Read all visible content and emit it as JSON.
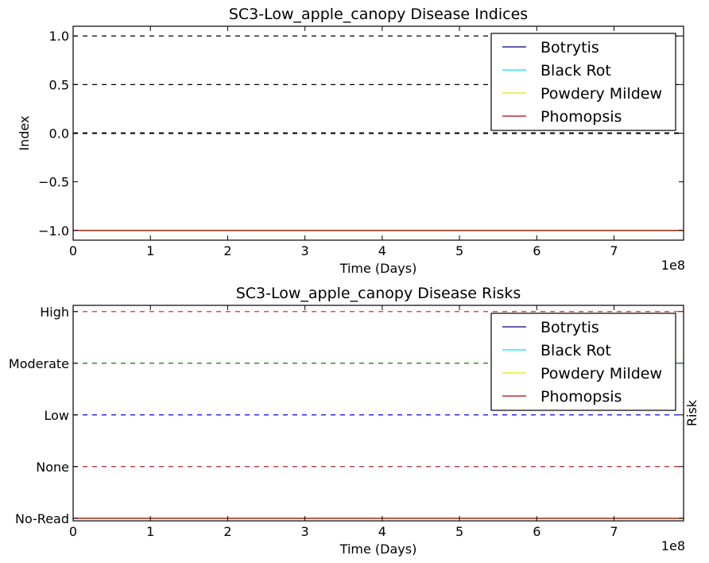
{
  "colors": {
    "Botrytis": "#00007f",
    "Black Rot": "#00e5ee",
    "Powdery Mildew": "#e5e500",
    "Phomopsis": "#b30000",
    "high_line": "#ff0000",
    "moderate_line": "#008000",
    "low_line": "#0000ff",
    "none_line": "#a52a2a",
    "index_ref_line": "#000000"
  },
  "chart_data": [
    {
      "type": "line",
      "title": "SC3-Low_apple_canopy Disease Indices",
      "xlabel": "Time (Days)",
      "ylabel": "Index",
      "x_offset_label": "1e8",
      "xlim": [
        0,
        7.9
      ],
      "ylim": [
        -1.1,
        1.1
      ],
      "xticks": [
        0,
        1,
        2,
        3,
        4,
        5,
        6,
        7
      ],
      "xtick_labels": [
        "0",
        "1",
        "2",
        "3",
        "4",
        "5",
        "6",
        "7"
      ],
      "yticks": [
        -1.0,
        -0.5,
        0.0,
        0.5,
        1.0
      ],
      "ytick_labels": [
        "−1.0",
        "−0.5",
        "0.0",
        "0.5",
        "1.0"
      ],
      "reference_lines": [
        {
          "y": 1.0,
          "style": "dashed",
          "color": "#000000"
        },
        {
          "y": 0.5,
          "style": "dashed",
          "color": "#000000"
        },
        {
          "y": 0.0,
          "style": "dashed",
          "color": "#000000"
        }
      ],
      "series": [
        {
          "name": "Botrytis",
          "x": [
            0,
            7.9
          ],
          "y": [
            -1.0,
            -1.0
          ]
        },
        {
          "name": "Black Rot",
          "x": [
            0,
            7.9
          ],
          "y": [
            -1.0,
            -1.0
          ]
        },
        {
          "name": "Powdery Mildew",
          "x": [
            0,
            7.9
          ],
          "y": [
            -1.0,
            -1.0
          ]
        },
        {
          "name": "Phomopsis",
          "x": [
            0,
            7.9
          ],
          "y": [
            -1.0,
            -1.0
          ]
        }
      ],
      "legend": "top-right",
      "grid": false
    },
    {
      "type": "line",
      "title": "SC3-Low_apple_canopy Disease Risks",
      "xlabel": "Time (Days)",
      "ylabel": "Risk",
      "x_offset_label": "1e8",
      "xlim": [
        0,
        7.9
      ],
      "ylim": [
        -0.05,
        4.12
      ],
      "xticks": [
        0,
        1,
        2,
        3,
        4,
        5,
        6,
        7
      ],
      "xtick_labels": [
        "0",
        "1",
        "2",
        "3",
        "4",
        "5",
        "6",
        "7"
      ],
      "yticks": [
        0,
        1,
        2,
        3,
        4
      ],
      "ytick_labels": [
        "No-Read",
        "None",
        "Low",
        "Moderate",
        "High"
      ],
      "reference_lines": [
        {
          "y": 4,
          "style": "dashed",
          "color": "#ff0000"
        },
        {
          "y": 3,
          "style": "dashed",
          "color": "#008000"
        },
        {
          "y": 2,
          "style": "dashed",
          "color": "#0000ff"
        },
        {
          "y": 1,
          "style": "dashed",
          "color": "#a52a2a"
        }
      ],
      "series": [
        {
          "name": "Botrytis",
          "x": [
            0,
            7.9
          ],
          "y": [
            0,
            0
          ]
        },
        {
          "name": "Black Rot",
          "x": [
            0,
            7.9
          ],
          "y": [
            0,
            0
          ]
        },
        {
          "name": "Powdery Mildew",
          "x": [
            0,
            7.9
          ],
          "y": [
            0,
            0
          ]
        },
        {
          "name": "Phomopsis",
          "x": [
            0,
            7.9
          ],
          "y": [
            0,
            0
          ]
        }
      ],
      "legend": "top-right",
      "grid": false
    }
  ]
}
